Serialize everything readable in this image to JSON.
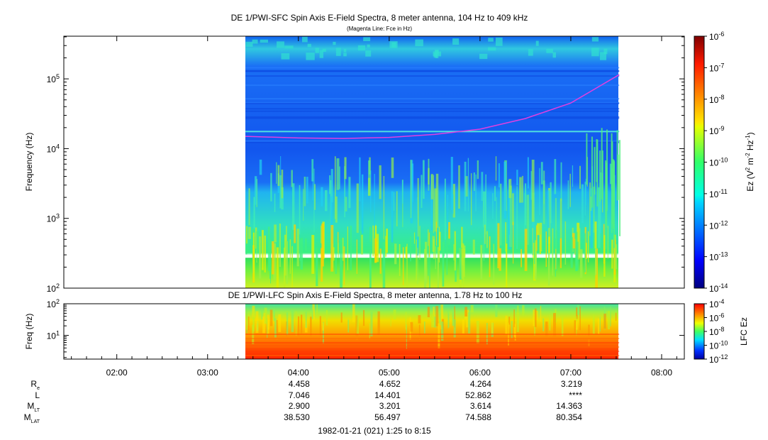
{
  "chart_data": [
    {
      "type": "heatmap",
      "title": "DE 1/PWI-SFC  Spin Axis E-Field Spectra, 8 meter antenna, 104 Hz to 409 kHz",
      "subtitle": "(Magenta Line: Fce in Hz)",
      "ylabel": "Frequency (Hz)",
      "yscale": "log",
      "ylim": [
        100,
        409000
      ],
      "yticks": [
        {
          "base": "10",
          "exp": "2"
        },
        {
          "base": "10",
          "exp": "3"
        },
        {
          "base": "10",
          "exp": "4"
        },
        {
          "base": "10",
          "exp": "5"
        }
      ],
      "data_time_range": [
        "03:25",
        "07:32"
      ],
      "colorbar": {
        "label": "Ez (V2 m-2 Hz-1)",
        "label_parts": {
          "pre": "Ez (V",
          "sup1": "2",
          "mid": " m",
          "sup2": "-2",
          "mid2": " Hz",
          "sup3": "-1",
          "post": ")"
        },
        "scale": "log",
        "range": [
          1e-14,
          1e-06
        ],
        "ticks": [
          {
            "base": "10",
            "exp": "-6"
          },
          {
            "base": "10",
            "exp": "-7"
          },
          {
            "base": "10",
            "exp": "-8"
          },
          {
            "base": "10",
            "exp": "-9"
          },
          {
            "base": "10",
            "exp": "-10"
          },
          {
            "base": "10",
            "exp": "-11"
          },
          {
            "base": "10",
            "exp": "-12"
          },
          {
            "base": "10",
            "exp": "-13"
          },
          {
            "base": "10",
            "exp": "-14"
          }
        ]
      },
      "fce_line": {
        "color": "#e040e0",
        "times": [
          "03:25",
          "04:00",
          "04:30",
          "05:00",
          "05:30",
          "06:00",
          "06:30",
          "07:00",
          "07:32"
        ],
        "values": [
          15000,
          14200,
          14000,
          14500,
          16000,
          19000,
          27000,
          45000,
          115000
        ]
      }
    },
    {
      "type": "heatmap",
      "title": "DE 1/PWI-LFC  Spin Axis E-Field Spectra, 8 meter antenna, 1.78 Hz to 100 Hz",
      "ylabel": "Freq (Hz)",
      "yscale": "log",
      "ylim": [
        1.78,
        100
      ],
      "yticks": [
        {
          "base": "10",
          "exp": "1"
        },
        {
          "base": "10",
          "exp": "2"
        }
      ],
      "data_time_range": [
        "03:25",
        "07:32"
      ],
      "colorbar": {
        "label": "LFC Ez",
        "scale": "log",
        "range": [
          1e-12,
          0.0001
        ],
        "ticks": [
          {
            "base": "10",
            "exp": "-4"
          },
          {
            "base": "10",
            "exp": "-6"
          },
          {
            "base": "10",
            "exp": "-8"
          },
          {
            "base": "10",
            "exp": "-10"
          },
          {
            "base": "10",
            "exp": "-12"
          }
        ]
      },
      "xticks": [
        "02:00",
        "03:00",
        "04:00",
        "05:00",
        "06:00",
        "07:00",
        "08:00"
      ],
      "xlim": [
        "01:25",
        "08:15"
      ]
    }
  ],
  "ephemeris": {
    "rows": [
      {
        "label": "R",
        "sub": "e",
        "values": [
          "4.458",
          "4.652",
          "4.264",
          "3.219"
        ]
      },
      {
        "label": "L",
        "sub": "",
        "values": [
          "7.046",
          "14.401",
          "52.862",
          "****"
        ]
      },
      {
        "label": "M",
        "sub": "LT",
        "values": [
          "2.900",
          "3.201",
          "3.614",
          "14.363"
        ]
      },
      {
        "label": "M",
        "sub": "LAT",
        "values": [
          "38.530",
          "56.497",
          "74.588",
          "80.354"
        ]
      }
    ],
    "times": [
      "04:00",
      "05:00",
      "06:00",
      "07:00"
    ]
  },
  "date_label": "1982-01-21 (021) 1:25 to 8:15",
  "colors": {
    "fce": "#e040e0",
    "gap": "#ffffff"
  }
}
